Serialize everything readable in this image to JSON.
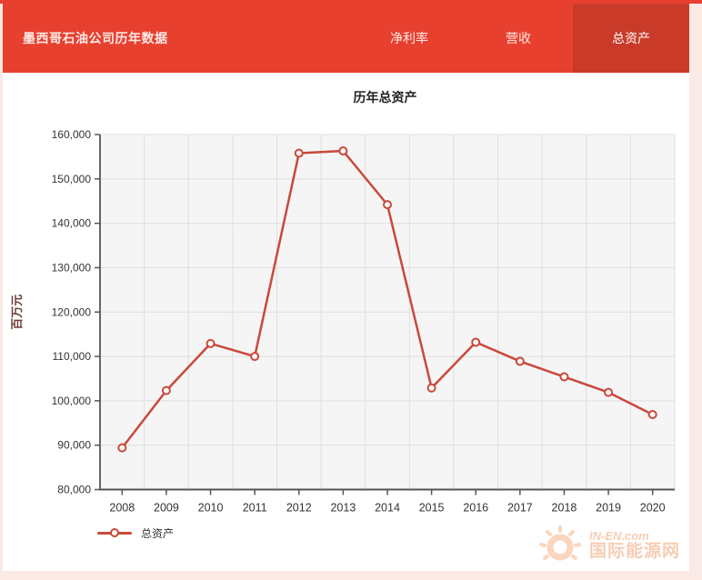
{
  "header": {
    "title": "墨西哥石油公司历年数据",
    "tabs": [
      {
        "label": "净利率",
        "active": false
      },
      {
        "label": "营收",
        "active": false
      },
      {
        "label": "总资产",
        "active": true
      }
    ]
  },
  "chart": {
    "title": "历年总资产",
    "y_axis_title": "百万元",
    "legend_label": "总资产"
  },
  "chart_data": {
    "type": "line",
    "title": "历年总资产",
    "xlabel": "",
    "ylabel": "百万元",
    "categories": [
      "2008",
      "2009",
      "2010",
      "2011",
      "2012",
      "2013",
      "2014",
      "2015",
      "2016",
      "2017",
      "2018",
      "2019",
      "2020"
    ],
    "series": [
      {
        "name": "总资产",
        "color": "#c9493b",
        "marker": "open-circle",
        "values": [
          89400,
          102300,
          112900,
          110000,
          155800,
          156300,
          144200,
          102900,
          113200,
          108900,
          105400,
          101900,
          96900
        ]
      }
    ],
    "ylim": [
      80000,
      160000
    ],
    "ytick_step": 10000,
    "grid": true,
    "legend_position": "bottom-left"
  },
  "watermark": {
    "line1": "IN-EN.com",
    "line2": "国际能源网"
  },
  "colors": {
    "header_bg": "#e8402f",
    "active_tab_bg": "#c93a28",
    "line": "#c9493b",
    "plot_bg": "#f5f5f5",
    "gridline": "#dfdfdf",
    "axis": "#555555",
    "page_border": "#fbe9e5"
  }
}
